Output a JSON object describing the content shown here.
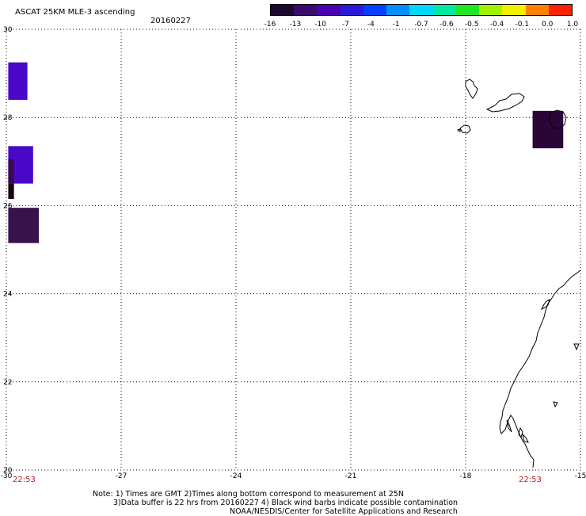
{
  "header": {
    "title": "ASCAT 25KM MLE-3 ascending",
    "date": "20160227"
  },
  "colorbar": {
    "labels": [
      "-16",
      "-13",
      "-10",
      "-7",
      "-4",
      "-1",
      "-0.7",
      "-0.6",
      "-0.5",
      "-0.4",
      "-0.1",
      "0.0",
      "1.0"
    ],
    "colors": [
      "#1a0a2e",
      "#3a0a6e",
      "#4b00b4",
      "#2a1ad8",
      "#0040ff",
      "#0090ff",
      "#00d8ff",
      "#00e8a0",
      "#20e820",
      "#a0f000",
      "#f0f000",
      "#ff8000",
      "#ff2000"
    ]
  },
  "map": {
    "lon_labels": [
      "-30",
      "-27",
      "-24",
      "-21",
      "-18",
      "-15"
    ],
    "lat_labels": [
      "30",
      "28",
      "26",
      "24",
      "22",
      "20"
    ],
    "lon_range": [
      -30,
      -15
    ],
    "lat_range": [
      20,
      30
    ],
    "grid": "dotted",
    "coast_color": "#000000",
    "time_left": "22:53",
    "time_right": "22:53",
    "time_color": "#b22222",
    "data_cells": [
      {
        "lon": [
          -29.95,
          -29.45
        ],
        "lat": [
          28.4,
          29.25
        ],
        "color": "#4a08c8"
      },
      {
        "lon": [
          -29.95,
          -29.3
        ],
        "lat": [
          26.5,
          27.35
        ],
        "color": "#4a08c8"
      },
      {
        "lon": [
          -29.95,
          -29.8
        ],
        "lat": [
          26.5,
          27.05
        ],
        "color": "#3a0a50"
      },
      {
        "lon": [
          -29.95,
          -29.8
        ],
        "lat": [
          26.15,
          26.5
        ],
        "color": "#1a0418"
      },
      {
        "lon": [
          -29.95,
          -29.15
        ],
        "lat": [
          25.15,
          25.95
        ],
        "color": "#38124a"
      },
      {
        "lon": [
          -16.25,
          -15.45
        ],
        "lat": [
          27.3,
          28.15
        ],
        "color": "#2a0638"
      }
    ]
  },
  "footer": {
    "note_line1": "Note: 1) Times are GMT 2)Times along bottom correspond to measurement at 25N",
    "note_line2": "3)Data buffer is 22 hrs from 20160227 4) Black wind barbs indicate possible contamination",
    "note_line3": "NOAA/NESDIS/Center for Satellite Applications and Research"
  }
}
